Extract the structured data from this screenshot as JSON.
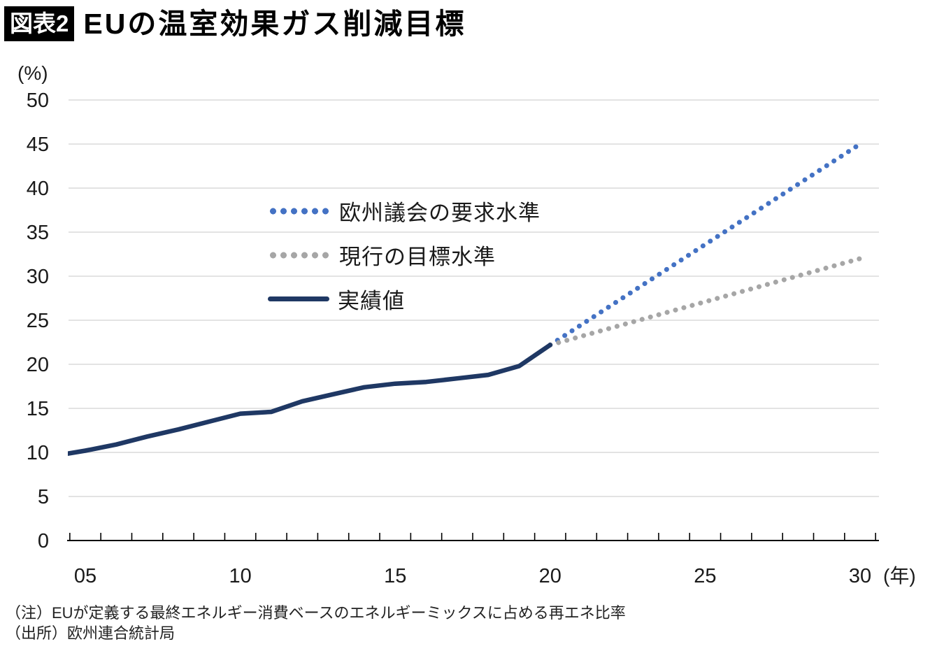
{
  "header": {
    "badge": "図表2",
    "title": "EUの温室効果ガス削減目標"
  },
  "chart_data": {
    "type": "line",
    "title": "EUの温室効果ガス削減目標",
    "grid": "horizontal",
    "y_axis": {
      "unit_label": "(%)",
      "min": 0,
      "max": 50,
      "tick_interval": 5,
      "tick_labels": [
        "0",
        "5",
        "10",
        "15",
        "20",
        "25",
        "30",
        "35",
        "40",
        "45",
        "50"
      ]
    },
    "x_axis": {
      "unit_label": "(年)",
      "range_years": [
        2004,
        2030
      ],
      "minor_ticks_every_year": true,
      "ticks": [
        {
          "year": 2005,
          "label": "05"
        },
        {
          "year": 2010,
          "label": "10"
        },
        {
          "year": 2015,
          "label": "15"
        },
        {
          "year": 2020,
          "label": "20"
        },
        {
          "year": 2025,
          "label": "25"
        },
        {
          "year": 2030,
          "label": "30"
        }
      ]
    },
    "legend": {
      "position": "inside-upper-left",
      "entries": [
        "欧州議会の要求水準",
        "現行の目標水準",
        "実績値"
      ]
    },
    "series": [
      {
        "id": "parliament-demand",
        "name": "欧州議会の要求水準",
        "line_style": "dotted",
        "color": "#4472C4",
        "points": [
          {
            "year": 2020,
            "value": 22.2
          },
          {
            "year": 2030,
            "value": 45.0
          }
        ]
      },
      {
        "id": "current-target",
        "name": "現行の目標水準",
        "line_style": "dotted",
        "color": "#A6A6A6",
        "points": [
          {
            "year": 2020,
            "value": 22.2
          },
          {
            "year": 2030,
            "value": 32.0
          }
        ]
      },
      {
        "id": "actual",
        "name": "実績値",
        "line_style": "solid",
        "color": "#1F3864",
        "points": [
          {
            "year": 2004,
            "value": 9.6
          },
          {
            "year": 2005,
            "value": 10.2
          },
          {
            "year": 2006,
            "value": 10.9
          },
          {
            "year": 2007,
            "value": 11.8
          },
          {
            "year": 2008,
            "value": 12.6
          },
          {
            "year": 2009,
            "value": 13.5
          },
          {
            "year": 2010,
            "value": 14.4
          },
          {
            "year": 2011,
            "value": 14.6
          },
          {
            "year": 2012,
            "value": 15.8
          },
          {
            "year": 2013,
            "value": 16.6
          },
          {
            "year": 2014,
            "value": 17.4
          },
          {
            "year": 2015,
            "value": 17.8
          },
          {
            "year": 2016,
            "value": 18.0
          },
          {
            "year": 2017,
            "value": 18.4
          },
          {
            "year": 2018,
            "value": 18.8
          },
          {
            "year": 2019,
            "value": 19.8
          },
          {
            "year": 2020,
            "value": 22.2
          }
        ]
      }
    ]
  },
  "footnotes": {
    "note": "（注）EUが定義する最終エネルギー消費ベースのエネルギーミックスに占める再エネ比率",
    "source": "（出所）欧州連合統計局"
  }
}
